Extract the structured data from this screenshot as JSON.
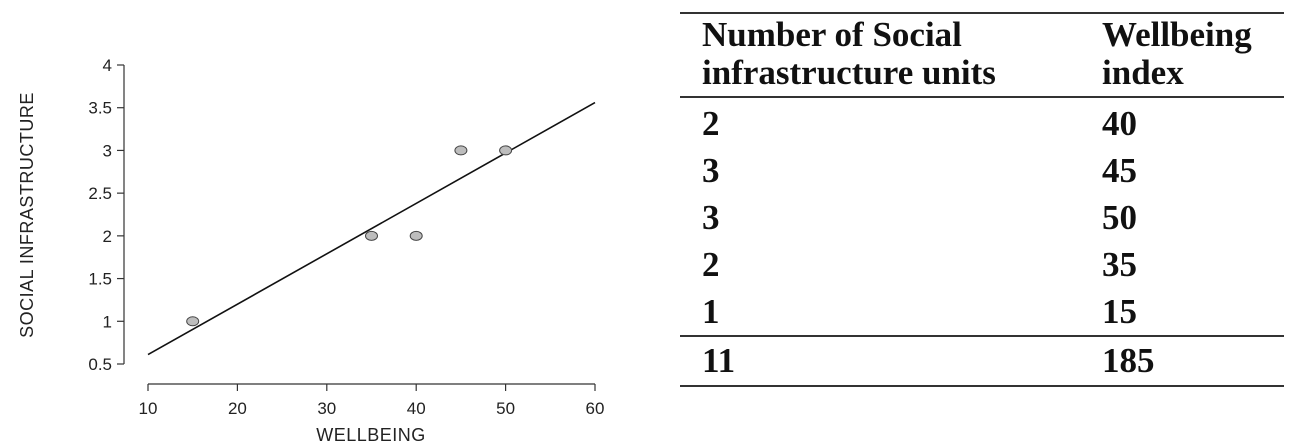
{
  "chart_data": {
    "type": "scatter",
    "title": "",
    "xlabel": "WELLBEING",
    "ylabel": "SOCIAL INFRASTRUCTURE",
    "xlim": [
      10,
      60
    ],
    "ylim": [
      0.5,
      4
    ],
    "xticks": [
      10,
      20,
      30,
      40,
      50,
      60
    ],
    "yticks": [
      0.5,
      1,
      1.5,
      2,
      2.5,
      3,
      3.5,
      4
    ],
    "ytick_labels": [
      "0.5",
      "1",
      "1.5",
      "2",
      "2.5",
      "3",
      "3.5",
      "4"
    ],
    "grid": false,
    "points": [
      {
        "x": 15,
        "y": 1
      },
      {
        "x": 35,
        "y": 2
      },
      {
        "x": 40,
        "y": 2
      },
      {
        "x": 45,
        "y": 3
      },
      {
        "x": 50,
        "y": 3
      }
    ],
    "fit_line": {
      "x": [
        10,
        60
      ],
      "y": [
        0.61,
        3.56
      ]
    },
    "point_color": "#bdbdbd",
    "line_color": "#111111"
  },
  "table": {
    "headers": [
      "Number of Social infrastructure units",
      "Wellbeing index"
    ],
    "rows": [
      [
        "2",
        "40"
      ],
      [
        "3",
        "45"
      ],
      [
        "3",
        "50"
      ],
      [
        "2",
        "35"
      ],
      [
        "1",
        "15"
      ]
    ],
    "total": [
      "11",
      "185"
    ]
  }
}
